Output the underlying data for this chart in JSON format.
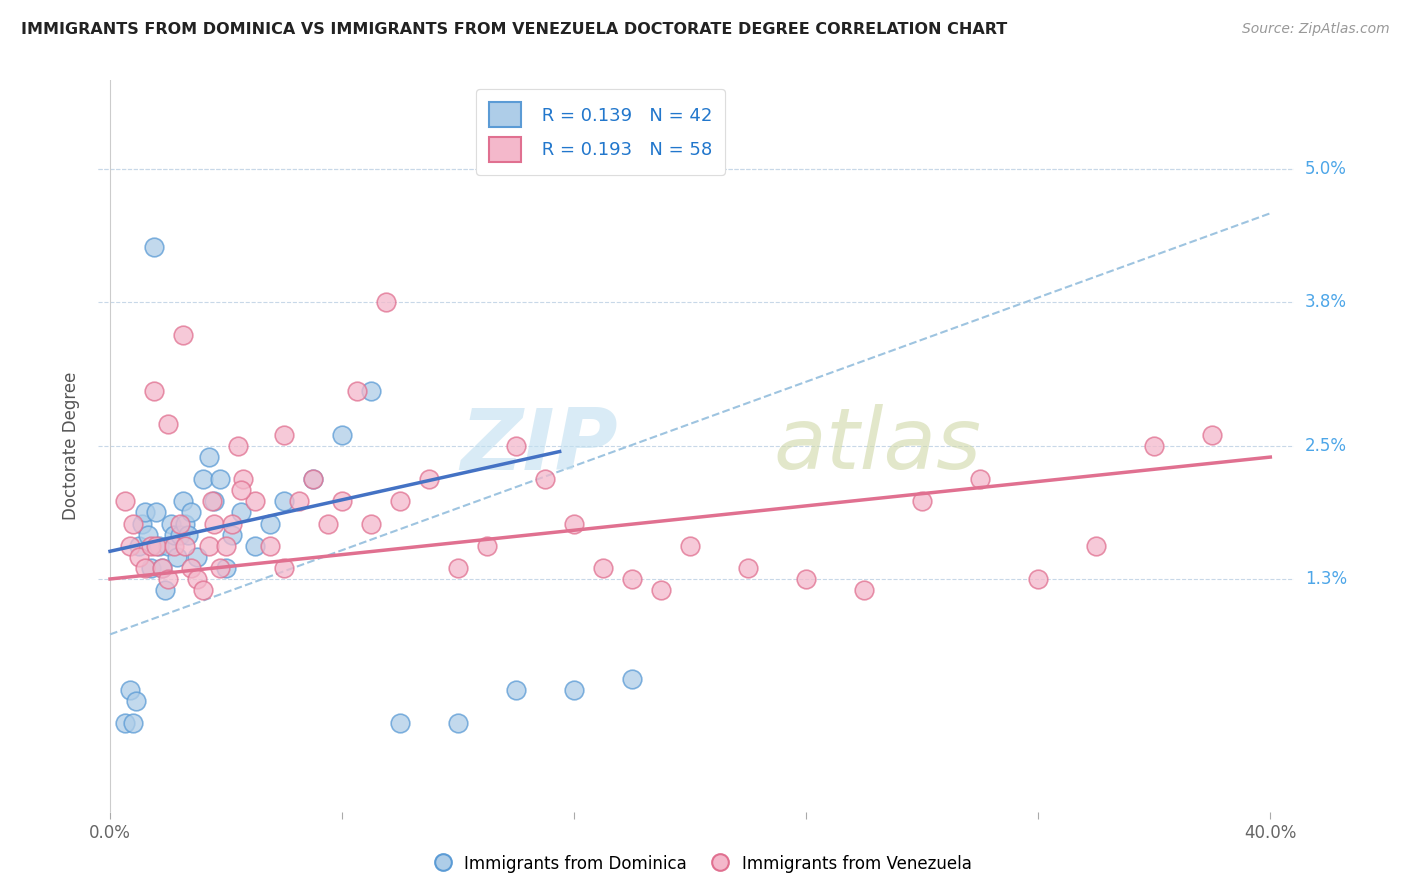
{
  "title": "IMMIGRANTS FROM DOMINICA VS IMMIGRANTS FROM VENEZUELA DOCTORATE DEGREE CORRELATION CHART",
  "source": "Source: ZipAtlas.com",
  "ylabel": "Doctorate Degree",
  "ytick_values": [
    0.013,
    0.025,
    0.038,
    0.05
  ],
  "ytick_labels": [
    "1.3%",
    "2.5%",
    "3.8%",
    "5.0%"
  ],
  "xlim": [
    -0.004,
    0.408
  ],
  "ylim": [
    -0.008,
    0.058
  ],
  "legend_r1": "R = 0.139",
  "legend_n1": "N = 42",
  "legend_r2": "R = 0.193",
  "legend_n2": "N = 58",
  "color_blue_fill": "#aecde8",
  "color_blue_edge": "#5b9bd5",
  "color_pink_fill": "#f4b8cb",
  "color_pink_edge": "#e07090",
  "color_blue_line": "#4472c4",
  "color_pink_line": "#e07090",
  "color_dash_line": "#9ec4e0",
  "blue_trend_x0": 0.0,
  "blue_trend_x1": 0.155,
  "blue_trend_y0": 0.0155,
  "blue_trend_y1": 0.0245,
  "pink_trend_x0": 0.0,
  "pink_trend_x1": 0.4,
  "pink_trend_y0": 0.013,
  "pink_trend_y1": 0.024,
  "dash_trend_x0": 0.0,
  "dash_trend_x1": 0.4,
  "dash_trend_y0": 0.008,
  "dash_trend_y1": 0.046,
  "bg_color": "#ffffff",
  "grid_color": "#c8d8e8",
  "title_color": "#222222",
  "source_color": "#999999",
  "legend_text_color": "#2277cc",
  "tick_color_y": "#4da6e8",
  "tick_color_x": "#666666",
  "blue_x": [
    0.005,
    0.007,
    0.008,
    0.009,
    0.01,
    0.011,
    0.012,
    0.013,
    0.014,
    0.015,
    0.016,
    0.017,
    0.018,
    0.019,
    0.02,
    0.021,
    0.022,
    0.023,
    0.024,
    0.025,
    0.026,
    0.027,
    0.028,
    0.03,
    0.032,
    0.034,
    0.036,
    0.038,
    0.04,
    0.042,
    0.045,
    0.05,
    0.055,
    0.06,
    0.07,
    0.08,
    0.09,
    0.1,
    0.12,
    0.14,
    0.16,
    0.18
  ],
  "blue_y": [
    0.0,
    0.003,
    0.0,
    0.002,
    0.016,
    0.018,
    0.019,
    0.017,
    0.014,
    0.043,
    0.019,
    0.016,
    0.014,
    0.012,
    0.016,
    0.018,
    0.017,
    0.015,
    0.017,
    0.02,
    0.018,
    0.017,
    0.019,
    0.015,
    0.022,
    0.024,
    0.02,
    0.022,
    0.014,
    0.017,
    0.019,
    0.016,
    0.018,
    0.02,
    0.022,
    0.026,
    0.03,
    0.0,
    0.0,
    0.003,
    0.003,
    0.004
  ],
  "pink_x": [
    0.005,
    0.007,
    0.008,
    0.01,
    0.012,
    0.014,
    0.016,
    0.018,
    0.02,
    0.022,
    0.024,
    0.026,
    0.028,
    0.03,
    0.032,
    0.034,
    0.036,
    0.038,
    0.04,
    0.042,
    0.044,
    0.046,
    0.05,
    0.055,
    0.06,
    0.065,
    0.07,
    0.075,
    0.08,
    0.085,
    0.09,
    0.095,
    0.1,
    0.11,
    0.12,
    0.13,
    0.14,
    0.15,
    0.16,
    0.17,
    0.18,
    0.19,
    0.2,
    0.22,
    0.24,
    0.26,
    0.28,
    0.3,
    0.32,
    0.34,
    0.36,
    0.38,
    0.015,
    0.02,
    0.025,
    0.035,
    0.045,
    0.06
  ],
  "pink_y": [
    0.02,
    0.016,
    0.018,
    0.015,
    0.014,
    0.016,
    0.016,
    0.014,
    0.013,
    0.016,
    0.018,
    0.016,
    0.014,
    0.013,
    0.012,
    0.016,
    0.018,
    0.014,
    0.016,
    0.018,
    0.025,
    0.022,
    0.02,
    0.016,
    0.014,
    0.02,
    0.022,
    0.018,
    0.02,
    0.03,
    0.018,
    0.038,
    0.02,
    0.022,
    0.014,
    0.016,
    0.025,
    0.022,
    0.018,
    0.014,
    0.013,
    0.012,
    0.016,
    0.014,
    0.013,
    0.012,
    0.02,
    0.022,
    0.013,
    0.016,
    0.025,
    0.026,
    0.03,
    0.027,
    0.035,
    0.02,
    0.021,
    0.026
  ]
}
